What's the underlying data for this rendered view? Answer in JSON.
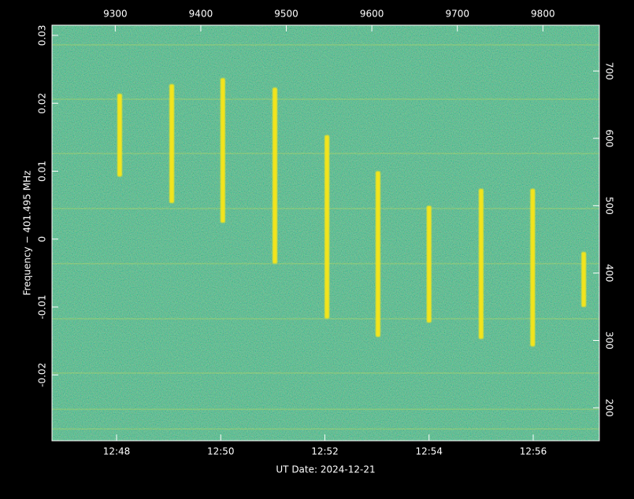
{
  "chart_data": {
    "type": "spectrogram",
    "xlabel": "UT Date: 2024-12-21",
    "ylabel": "Frequency − 401.495 MHz",
    "xlim": [
      766.76,
      777.27
    ],
    "xticks": [
      {
        "value": 768,
        "label": "12:48"
      },
      {
        "value": 770,
        "label": "12:50"
      },
      {
        "value": 772,
        "label": "12:52"
      },
      {
        "value": 774,
        "label": "12:54"
      },
      {
        "value": 776,
        "label": "12:56"
      }
    ],
    "x2lim": [
      9226,
      9866
    ],
    "x2ticks": [
      9300,
      9400,
      9500,
      9600,
      9700,
      9800
    ],
    "ylim": [
      -0.0297,
      0.0315
    ],
    "yticks": [
      -0.02,
      -0.01,
      0,
      0.01,
      0.02,
      0.03
    ],
    "y2lim": [
      151,
      768
    ],
    "y2ticks": [
      200,
      300,
      400,
      500,
      600,
      700
    ],
    "background_color": "#2f9a7c",
    "pulses": {
      "color": "#f2e41c",
      "x": [
        768.06,
        769.06,
        770.04,
        771.04,
        772.04,
        773.02,
        774.0,
        775.0,
        775.99,
        776.97
      ],
      "y_top": [
        0.0214,
        0.0228,
        0.0237,
        0.0223,
        0.0153,
        0.01,
        0.0049,
        0.0074,
        0.0074,
        -0.0019
      ],
      "y_bottom": [
        0.0092,
        0.0053,
        0.0024,
        -0.0036,
        -0.0117,
        -0.0144,
        -0.0123,
        -0.0147,
        -0.0158,
        -0.01
      ]
    }
  }
}
